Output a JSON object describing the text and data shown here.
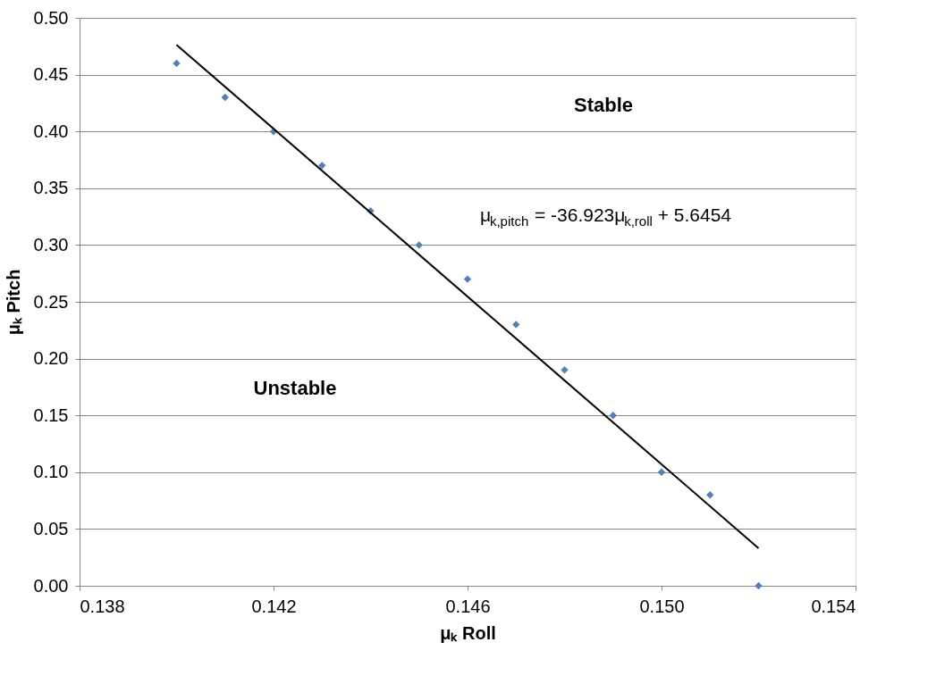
{
  "chart_data": {
    "type": "scatter",
    "xlabel": "μₖ Roll",
    "ylabel": "μₖ Pitch",
    "x": [
      0.14,
      0.141,
      0.142,
      0.143,
      0.144,
      0.145,
      0.146,
      0.147,
      0.148,
      0.149,
      0.15,
      0.151,
      0.152
    ],
    "series": [
      {
        "color": "#4f81bd",
        "values": [
          0.46,
          0.43,
          0.4,
          0.37,
          0.33,
          0.3,
          0.27,
          0.23,
          0.19,
          0.15,
          0.1,
          0.08,
          0.0
        ]
      },
      {
        "type": "line",
        "color": "#000000",
        "marker": "none",
        "x": [
          0.14,
          0.152
        ],
        "values": [
          0.4762,
          0.0331
        ]
      }
    ],
    "xlim": [
      0.138,
      0.154
    ],
    "xticks": [
      0.138,
      0.142,
      0.146,
      {
        "value": 0.15,
        "label": "0.150"
      },
      0.154
    ],
    "ylim": [
      0,
      0.5
    ],
    "yticks": [
      {
        "value": 0,
        "label": "0.00"
      },
      0.05,
      {
        "value": 0.1,
        "label": "0.10"
      },
      0.15,
      {
        "value": 0.2,
        "label": "0.20"
      },
      0.25,
      {
        "value": 0.3,
        "label": "0.30"
      },
      0.35,
      {
        "value": 0.4,
        "label": "0.40"
      },
      0.45,
      {
        "value": 0.5,
        "label": "0.50"
      }
    ],
    "grid": "y",
    "marker": "diamond",
    "line_style": "solid",
    "annotations": [
      "Stable",
      "Unstable",
      "μ$_{k,pitch}$ = -36.923μ$_{k,roll}$ + 5.6454"
    ]
  }
}
